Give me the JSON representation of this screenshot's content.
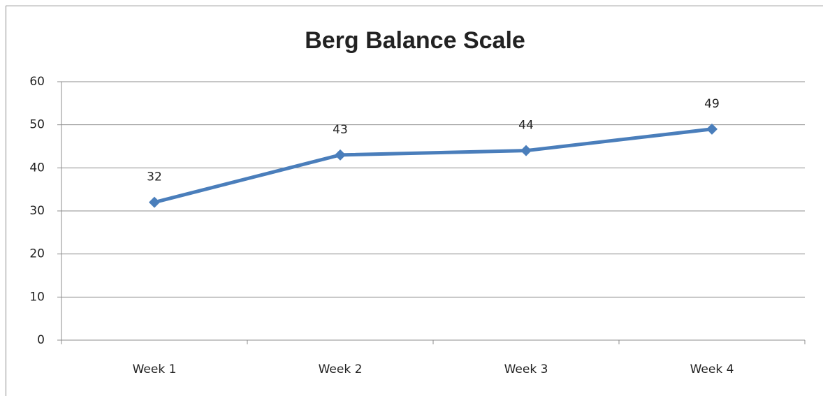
{
  "chart_data": {
    "type": "line",
    "title": "Berg Balance Scale",
    "categories": [
      "Week 1",
      "Week 2",
      "Week 3",
      "Week 4"
    ],
    "values": [
      32,
      43,
      44,
      49
    ],
    "color": "#4a7ebb",
    "ylim": [
      0,
      60
    ],
    "yticks": [
      0,
      10,
      20,
      30,
      40,
      50,
      60
    ],
    "grid": true
  }
}
